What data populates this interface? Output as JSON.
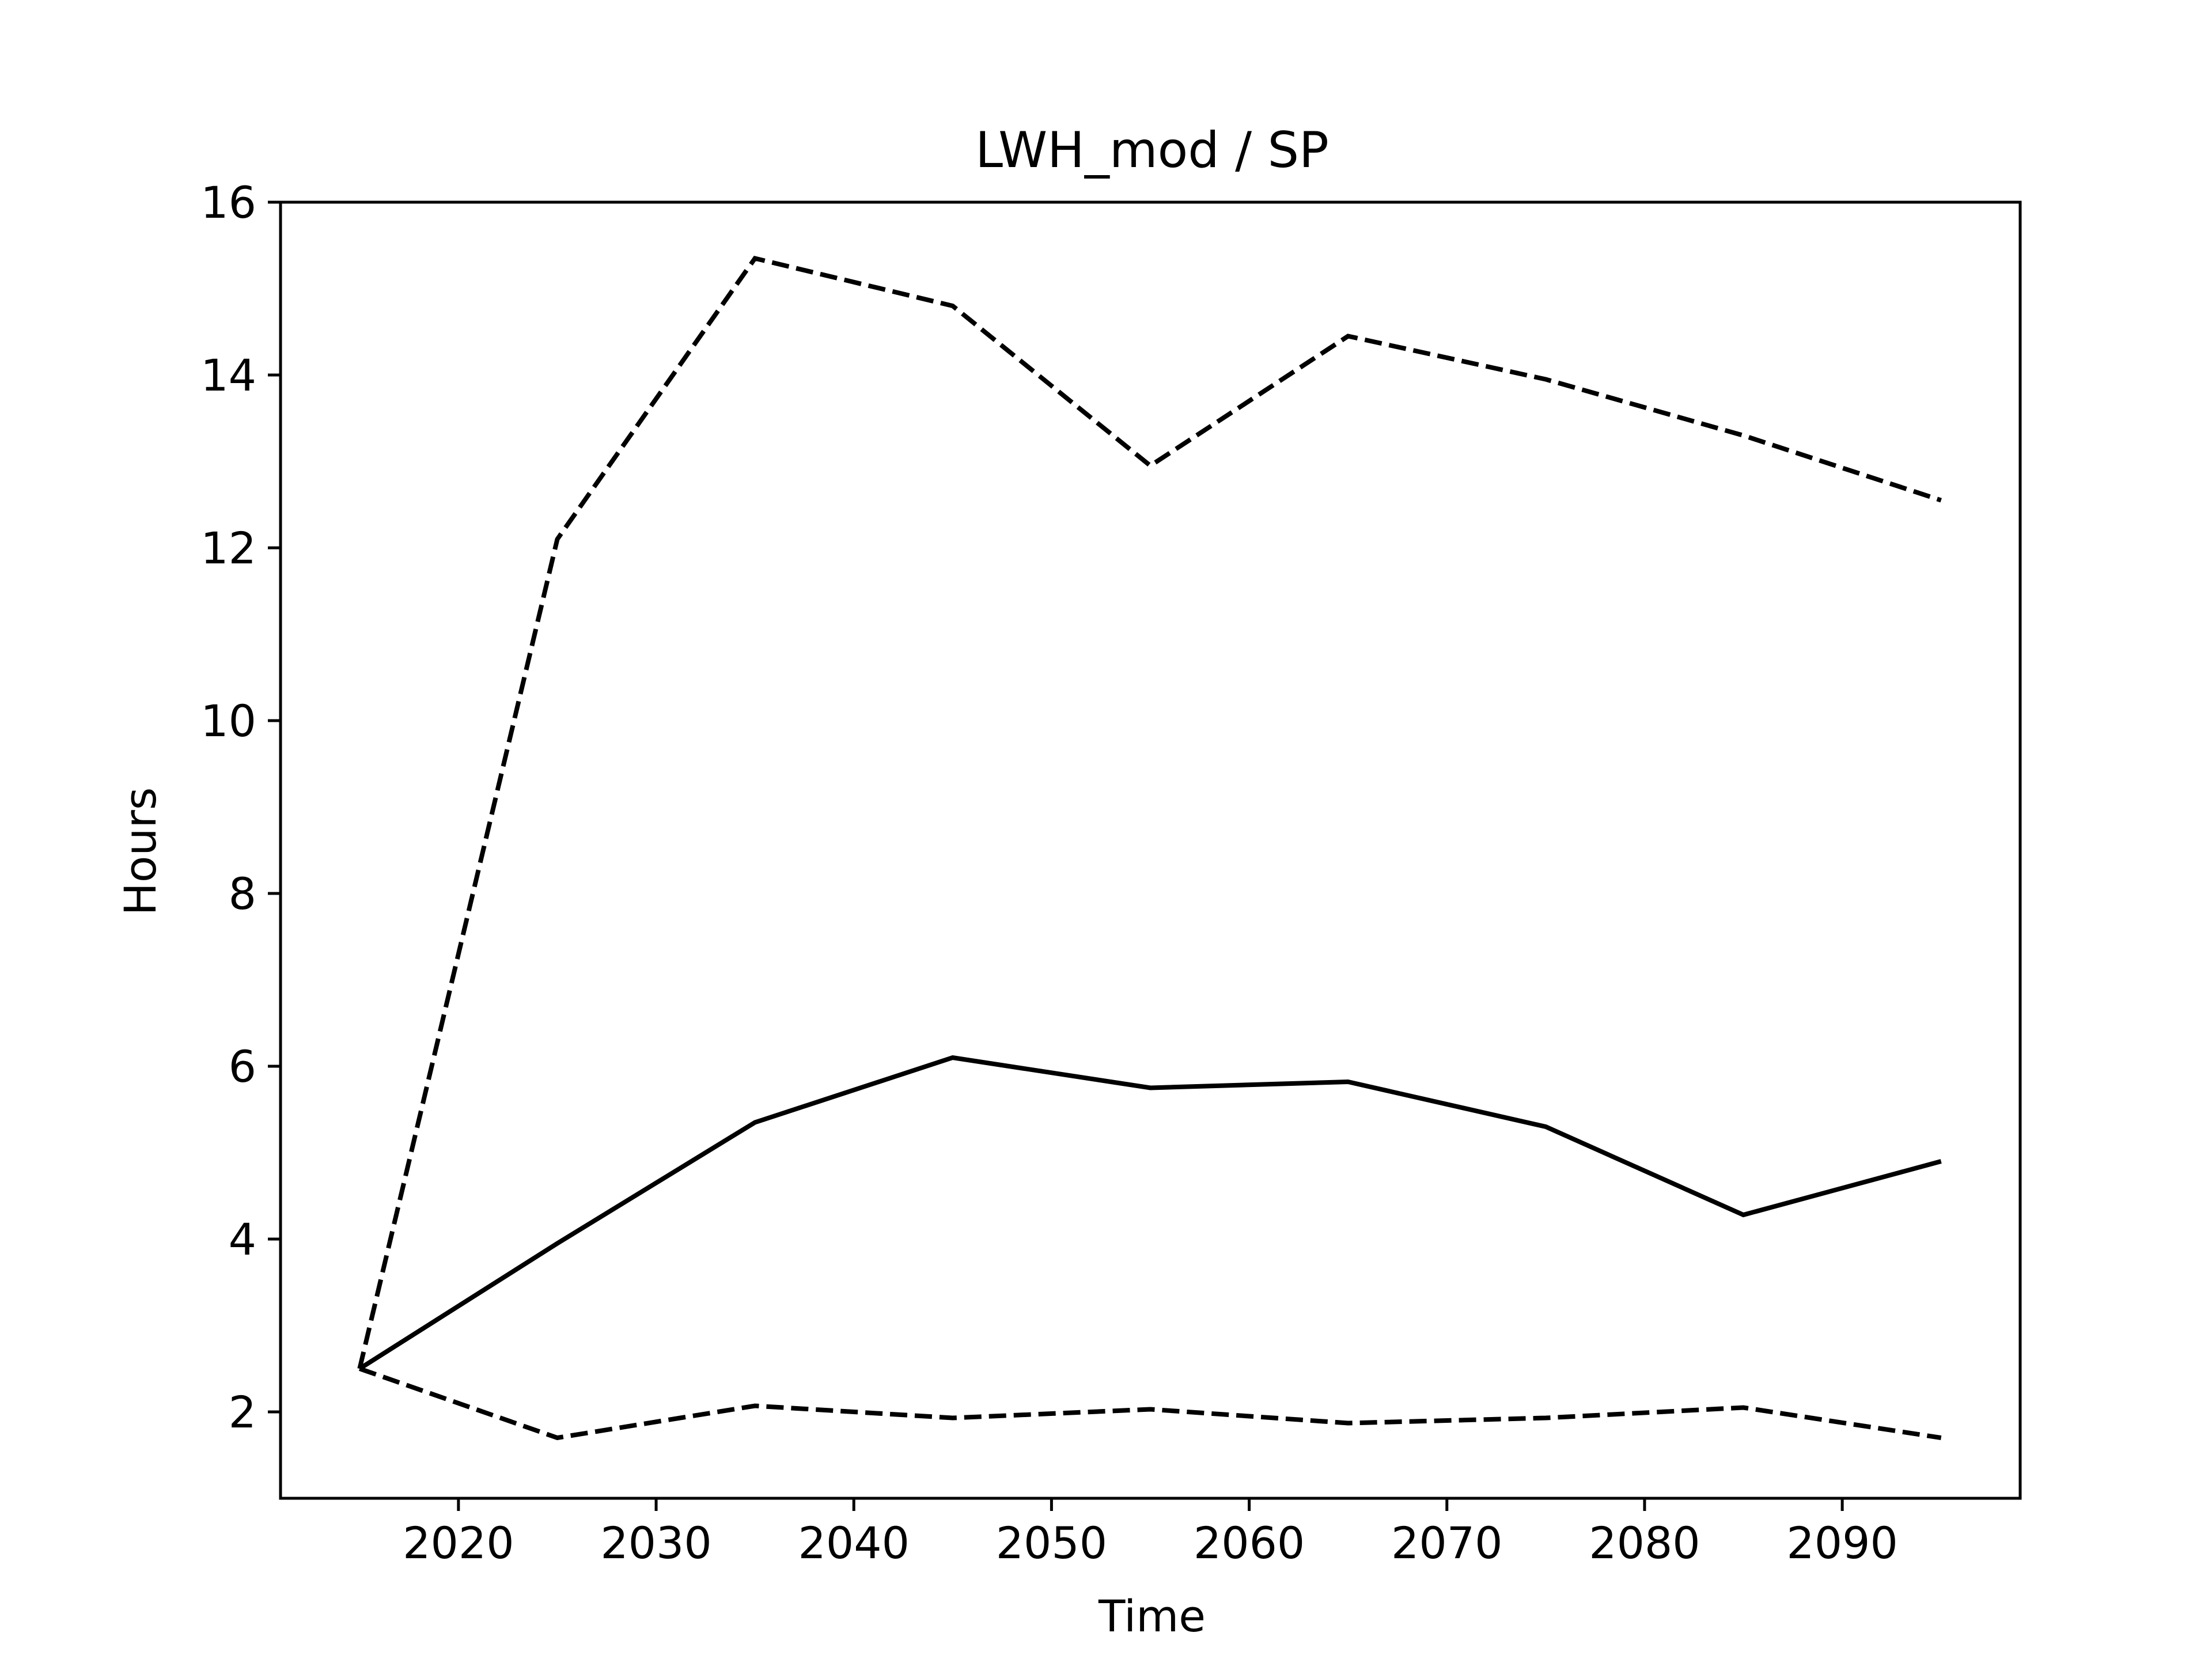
{
  "chart_data": {
    "type": "line",
    "title": "LWH_mod / SP",
    "xlabel": "Time",
    "ylabel": "Hours",
    "xlim": [
      2011,
      2099
    ],
    "ylim": [
      1,
      16
    ],
    "xticks": [
      2020,
      2030,
      2040,
      2050,
      2060,
      2070,
      2080,
      2090
    ],
    "yticks": [
      2,
      4,
      6,
      8,
      10,
      12,
      14,
      16
    ],
    "grid": false,
    "x": [
      2015,
      2025,
      2035,
      2045,
      2055,
      2065,
      2075,
      2085,
      2095
    ],
    "series": [
      {
        "style": "dashed",
        "color": "#000000",
        "values": [
          2.5,
          12.1,
          15.35,
          14.8,
          12.95,
          14.45,
          13.95,
          13.3,
          12.55
        ]
      },
      {
        "style": "solid",
        "color": "#000000",
        "values": [
          2.5,
          3.95,
          5.35,
          6.1,
          5.75,
          5.82,
          5.3,
          4.28,
          4.9
        ]
      },
      {
        "style": "dashed",
        "color": "#000000",
        "values": [
          2.5,
          1.7,
          2.07,
          1.93,
          2.03,
          1.87,
          1.93,
          2.05,
          1.7
        ]
      }
    ]
  }
}
